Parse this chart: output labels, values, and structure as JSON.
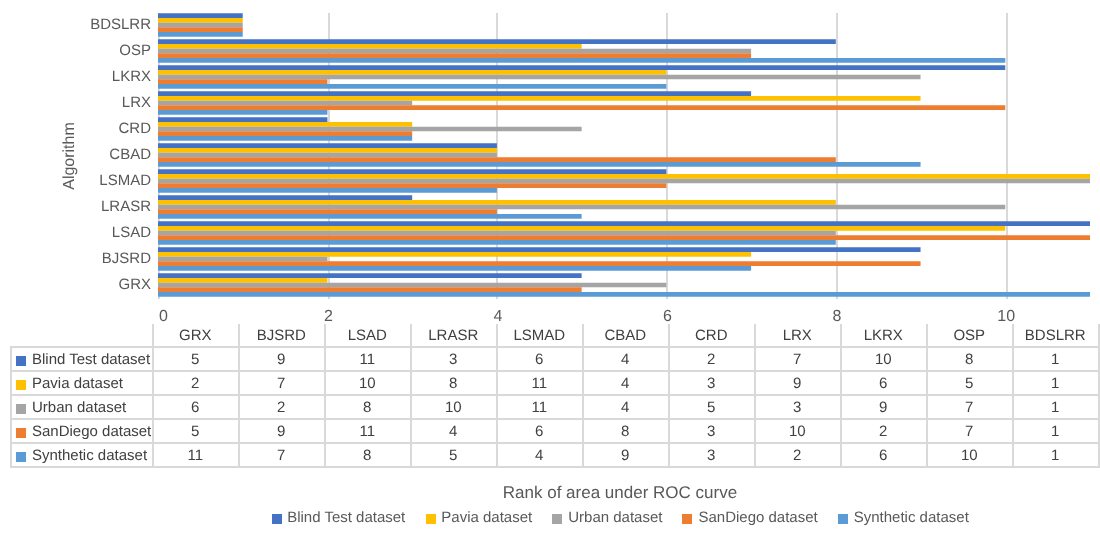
{
  "chart_data": [
    {
      "type": "bar",
      "orientation": "horizontal",
      "ylabel": "Algorithm",
      "categories": [
        "BDSLRR",
        "OSP",
        "LKRX",
        "LRX",
        "CRD",
        "CBAD",
        "LSMAD",
        "LRASR",
        "LSAD",
        "BJSRD",
        "GRX"
      ],
      "series": [
        {
          "name": "Blind Test dataset",
          "color": "#4472c4",
          "values": [
            1,
            8,
            10,
            7,
            2,
            4,
            6,
            3,
            11,
            9,
            5
          ]
        },
        {
          "name": "Pavia dataset",
          "color": "#ffc000",
          "values": [
            1,
            5,
            6,
            9,
            3,
            4,
            11,
            8,
            10,
            7,
            2
          ]
        },
        {
          "name": "Urban dataset",
          "color": "#a5a5a5",
          "values": [
            1,
            7,
            9,
            3,
            5,
            4,
            11,
            10,
            8,
            2,
            6
          ]
        },
        {
          "name": "SanDiego dataset",
          "color": "#ed7d31",
          "values": [
            1,
            7,
            2,
            10,
            3,
            8,
            6,
            4,
            11,
            9,
            5
          ]
        },
        {
          "name": "Synthetic dataset",
          "color": "#5b9bd5",
          "values": [
            1,
            10,
            6,
            2,
            3,
            9,
            4,
            5,
            8,
            7,
            11
          ]
        }
      ],
      "xlim": [
        0,
        11
      ],
      "xticks": [
        0,
        2,
        4,
        6,
        8,
        10
      ],
      "grid": "x",
      "legend": "bottom",
      "annotations": [
        "Rank of area under ROC curve"
      ]
    },
    {
      "type": "other",
      "data_labels": true,
      "categories": [
        "GRX",
        "BJSRD",
        "LSAD",
        "LRASR",
        "LSMAD",
        "CBAD",
        "CRD",
        "LRX",
        "LKRX",
        "OSP",
        "BDSLRR"
      ],
      "series": [
        {
          "name": "Blind Test dataset",
          "color": "#4472c4",
          "values": [
            5,
            9,
            11,
            3,
            6,
            4,
            2,
            7,
            10,
            8,
            1
          ]
        },
        {
          "name": "Pavia dataset",
          "color": "#ffc000",
          "values": [
            2,
            7,
            10,
            8,
            11,
            4,
            3,
            9,
            6,
            5,
            1
          ]
        },
        {
          "name": "Urban dataset",
          "color": "#a5a5a5",
          "values": [
            6,
            2,
            8,
            10,
            11,
            4,
            5,
            3,
            9,
            7,
            1
          ]
        },
        {
          "name": "SanDiego dataset",
          "color": "#ed7d31",
          "values": [
            5,
            9,
            11,
            4,
            6,
            8,
            3,
            10,
            2,
            7,
            1
          ]
        },
        {
          "name": "Synthetic dataset",
          "color": "#5b9bd5",
          "values": [
            11,
            7,
            8,
            5,
            4,
            9,
            3,
            2,
            6,
            10,
            1
          ]
        }
      ]
    }
  ]
}
